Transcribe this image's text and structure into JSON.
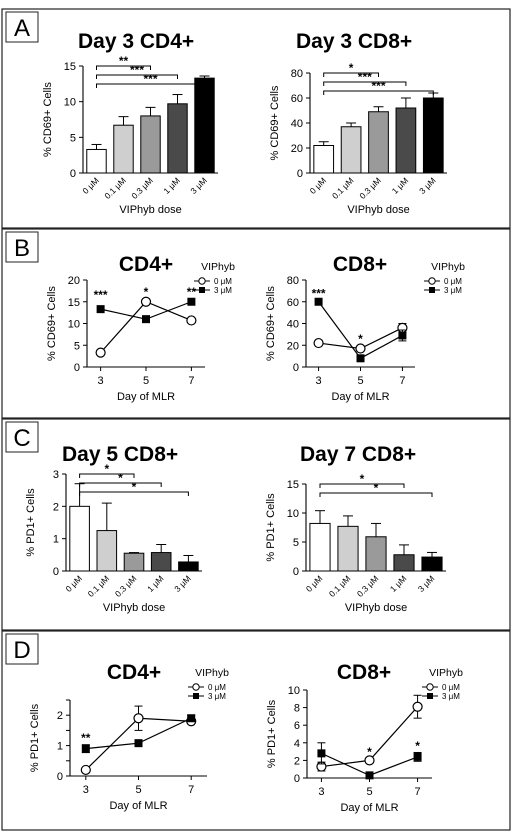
{
  "panels": [
    {
      "letter": "A",
      "top": 9,
      "bottom": 228
    },
    {
      "letter": "B",
      "top": 229,
      "bottom": 418
    },
    {
      "letter": "C",
      "top": 419,
      "bottom": 630
    },
    {
      "letter": "D",
      "top": 631,
      "bottom": 830
    }
  ],
  "chart_data": [
    {
      "id": "A1",
      "panel": "A",
      "type": "bar",
      "title": "Day 3  CD4+",
      "ylabel": "% CD69+ Cells",
      "xlabel": "VIPhyb dose",
      "categories": [
        "0 μM",
        "0.1 μM",
        "0.3 μM",
        "1 μM",
        "3 μM"
      ],
      "values": [
        3.3,
        6.7,
        8.0,
        9.7,
        13.3
      ],
      "errors": [
        0.7,
        1.2,
        1.2,
        1.3,
        0.3
      ],
      "colors": [
        "#ffffff",
        "#cfcfcf",
        "#9a9a9a",
        "#4a4a4a",
        "#000000"
      ],
      "ylim": [
        0,
        15
      ],
      "yticks": [
        0,
        5,
        10,
        15
      ],
      "significance": [
        {
          "from": 0,
          "to": 4,
          "label": "***"
        },
        {
          "from": 0,
          "to": 3,
          "label": "***"
        },
        {
          "from": 0,
          "to": 2,
          "label": "**"
        }
      ]
    },
    {
      "id": "A2",
      "panel": "A",
      "type": "bar",
      "title": "Day 3  CD8+",
      "ylabel": "% CD69+ Cells",
      "xlabel": "VIPhyb dose",
      "categories": [
        "0 μM",
        "0.1 μM",
        "0.3 μM",
        "1 μM",
        "3 μM"
      ],
      "values": [
        22,
        37,
        49,
        52,
        60
      ],
      "errors": [
        3,
        3,
        4,
        8,
        4
      ],
      "colors": [
        "#ffffff",
        "#cfcfcf",
        "#9a9a9a",
        "#4a4a4a",
        "#000000"
      ],
      "ylim": [
        0,
        80
      ],
      "yticks": [
        0,
        20,
        40,
        60,
        80
      ],
      "significance": [
        {
          "from": 0,
          "to": 4,
          "label": "***"
        },
        {
          "from": 0,
          "to": 3,
          "label": "***"
        },
        {
          "from": 0,
          "to": 2,
          "label": "*"
        }
      ]
    },
    {
      "id": "B1",
      "panel": "B",
      "type": "line",
      "title": "CD4+",
      "ylabel": "% CD69+ Cells",
      "xlabel": "Day of MLR",
      "x": [
        3,
        5,
        7
      ],
      "xlim": [
        2.4,
        7.6
      ],
      "ylim": [
        0,
        20
      ],
      "yticks": [
        0,
        5,
        10,
        15,
        20
      ],
      "legend_title": "VIPhyb",
      "series": [
        {
          "name": "0 μM",
          "marker": "open-circle",
          "values": [
            3.3,
            15,
            10.7
          ],
          "errors": [
            0,
            0,
            0
          ]
        },
        {
          "name": "3 μM",
          "marker": "filled-square",
          "values": [
            13.3,
            11,
            15
          ],
          "errors": [
            0,
            0,
            0
          ]
        }
      ],
      "annotations": [
        {
          "x": 3,
          "y": 15.6,
          "label": "***"
        },
        {
          "x": 5,
          "y": 16.3,
          "label": "*"
        },
        {
          "x": 7,
          "y": 16.3,
          "label": "**"
        }
      ]
    },
    {
      "id": "B2",
      "panel": "B",
      "type": "line",
      "title": "CD8+",
      "ylabel": "% CD69+ Cells",
      "xlabel": "Day of MLR",
      "x": [
        3,
        5,
        7
      ],
      "xlim": [
        2.4,
        7.6
      ],
      "ylim": [
        0,
        80
      ],
      "yticks": [
        0,
        20,
        40,
        60,
        80
      ],
      "legend_title": "VIPhyb",
      "series": [
        {
          "name": "0 μM",
          "marker": "open-circle",
          "values": [
            22,
            17,
            36
          ],
          "errors": [
            0,
            0,
            4
          ]
        },
        {
          "name": "3 μM",
          "marker": "filled-square",
          "values": [
            60,
            8,
            29
          ],
          "errors": [
            0,
            0,
            5
          ]
        }
      ],
      "annotations": [
        {
          "x": 3,
          "y": 64,
          "label": "***"
        },
        {
          "x": 5,
          "y": 22,
          "label": "*"
        }
      ]
    },
    {
      "id": "C1",
      "panel": "C",
      "type": "bar",
      "title": "Day 5  CD8+",
      "ylabel": "% PD1+ Cells",
      "xlabel": "VIPhyb dose",
      "categories": [
        "0 μM",
        "0.1 μM",
        "0.3 μM",
        "1 μM",
        "3 μM"
      ],
      "values": [
        2.0,
        1.25,
        0.55,
        0.57,
        0.28
      ],
      "errors": [
        0.7,
        0.85,
        0.02,
        0.25,
        0.2
      ],
      "colors": [
        "#ffffff",
        "#cfcfcf",
        "#9a9a9a",
        "#4a4a4a",
        "#000000"
      ],
      "ylim": [
        0,
        3
      ],
      "yticks": [
        0,
        1,
        2,
        3
      ],
      "significance": [
        {
          "from": 0,
          "to": 4,
          "label": "*"
        },
        {
          "from": 0,
          "to": 3,
          "label": "*"
        },
        {
          "from": 0,
          "to": 2,
          "label": "*"
        }
      ]
    },
    {
      "id": "C2",
      "panel": "C",
      "type": "bar",
      "title": "Day 7  CD8+",
      "ylabel": "% PD1+ Cells",
      "xlabel": "VIPhyb dose",
      "categories": [
        "0 μM",
        "0.1 μM",
        "0.3 μM",
        "1 μM",
        "3 μM"
      ],
      "values": [
        8.2,
        7.7,
        5.9,
        2.8,
        2.4
      ],
      "errors": [
        2.2,
        1.8,
        2.3,
        1.7,
        0.8
      ],
      "colors": [
        "#ffffff",
        "#cfcfcf",
        "#9a9a9a",
        "#4a4a4a",
        "#000000"
      ],
      "ylim": [
        0,
        15
      ],
      "yticks": [
        0,
        5,
        10,
        15
      ],
      "significance": [
        {
          "from": 0,
          "to": 4,
          "label": "*"
        },
        {
          "from": 0,
          "to": 3,
          "label": "*"
        }
      ]
    },
    {
      "id": "D1",
      "panel": "D",
      "type": "line",
      "title": "CD4+",
      "ylabel": "% PD1+ Cells",
      "xlabel": "Day of MLR",
      "x": [
        3,
        5,
        7
      ],
      "xlim": [
        2.4,
        7.6
      ],
      "ylim": [
        0,
        2.5
      ],
      "yticks": [
        0,
        0.5,
        1,
        1.5,
        2,
        2.5
      ],
      "ytick_labels": [
        "0",
        "",
        "1",
        "",
        "2",
        ""
      ],
      "legend_title": "VIPhyb",
      "series": [
        {
          "name": "0 μM",
          "marker": "open-circle",
          "values": [
            0.2,
            1.9,
            1.8
          ],
          "errors": [
            0,
            0.4,
            0.07
          ]
        },
        {
          "name": "3 μM",
          "marker": "filled-square",
          "values": [
            0.9,
            1.08,
            1.9
          ],
          "errors": [
            0.13,
            0,
            0.1
          ]
        }
      ],
      "annotations": [
        {
          "x": 3,
          "y": 1.12,
          "label": "**"
        }
      ]
    },
    {
      "id": "D2",
      "panel": "D",
      "type": "line",
      "title": "CD8+",
      "ylabel": "% PD1+ Cells",
      "xlabel": "Day of MLR",
      "x": [
        3,
        5,
        7
      ],
      "xlim": [
        2.4,
        7.6
      ],
      "ylim": [
        0,
        10
      ],
      "yticks": [
        0,
        2,
        4,
        6,
        8,
        10
      ],
      "legend_title": "VIPhyb",
      "series": [
        {
          "name": "0 μM",
          "marker": "open-circle",
          "values": [
            1.3,
            2.0,
            8.1
          ],
          "errors": [
            0.5,
            0.2,
            1.3
          ]
        },
        {
          "name": "3 μM",
          "marker": "filled-square",
          "values": [
            2.8,
            0.3,
            2.4
          ],
          "errors": [
            1.2,
            0.2,
            0.5
          ]
        }
      ],
      "annotations": [
        {
          "x": 5,
          "y": 2.5,
          "label": "*"
        },
        {
          "x": 7,
          "y": 3.2,
          "label": "*"
        }
      ]
    }
  ]
}
